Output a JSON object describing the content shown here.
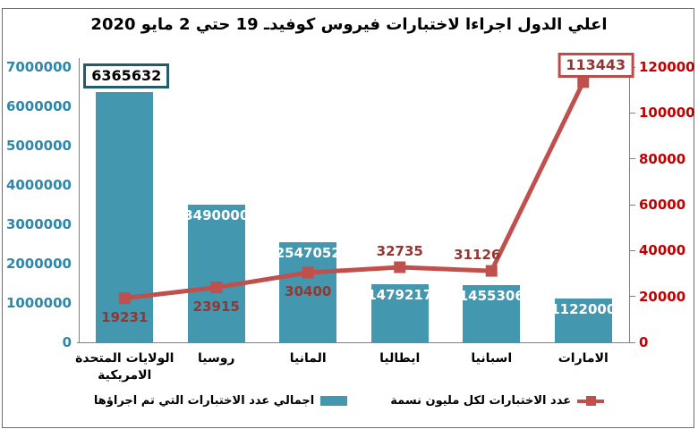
{
  "title": "اعلي الدول اجراءا لاختبارات فيروس كوفيدـ 19 حتي 2 مايو 2020",
  "chart_data": {
    "type": "combo",
    "categories": [
      "الولايات المتحدة الامريكية",
      "روسيا",
      "المانيا",
      "ايطاليا",
      "اسبانيا",
      "الامارات"
    ],
    "series": [
      {
        "name": "اجمالي عدد الاختبارات التي تم اجراؤها",
        "type": "bar",
        "axis": "left",
        "color": "#4397AE",
        "values": [
          6365632,
          3490000,
          2547052,
          1479217,
          1455306,
          1122000
        ],
        "labels": [
          "6365632",
          "3490000",
          "2547052",
          "1479217",
          "1455306",
          "1122000"
        ],
        "label_color_inside": "#FFFFFF",
        "boxed_point_border": "#215C6B",
        "boxed_point_text": "#000000"
      },
      {
        "name": "عدد الاختبارات لكل مليون نسمة",
        "type": "line",
        "axis": "right",
        "color": "#C0504D",
        "values": [
          19231,
          23915,
          30400,
          32735,
          31126,
          113443
        ],
        "labels": [
          "19231",
          "23915",
          "30400",
          "32735",
          "31126",
          "113443"
        ],
        "label_color": "#943634",
        "boxed_point_border": "#BE4B48",
        "boxed_point_text": "#943634"
      }
    ],
    "left_axis": {
      "min": 0,
      "max": 7000000,
      "step": 1000000,
      "ticks": [
        "0",
        "1000000",
        "2000000",
        "3000000",
        "4000000",
        "5000000",
        "6000000",
        "7000000"
      ],
      "label_color": "#2E87A8"
    },
    "right_axis": {
      "min": 0,
      "max": 120000,
      "step": 20000,
      "ticks": [
        "0",
        "20000",
        "40000",
        "60000",
        "80000",
        "100000",
        "120000"
      ],
      "label_color": "#C00000"
    },
    "grid": false,
    "legend_position": "bottom"
  }
}
